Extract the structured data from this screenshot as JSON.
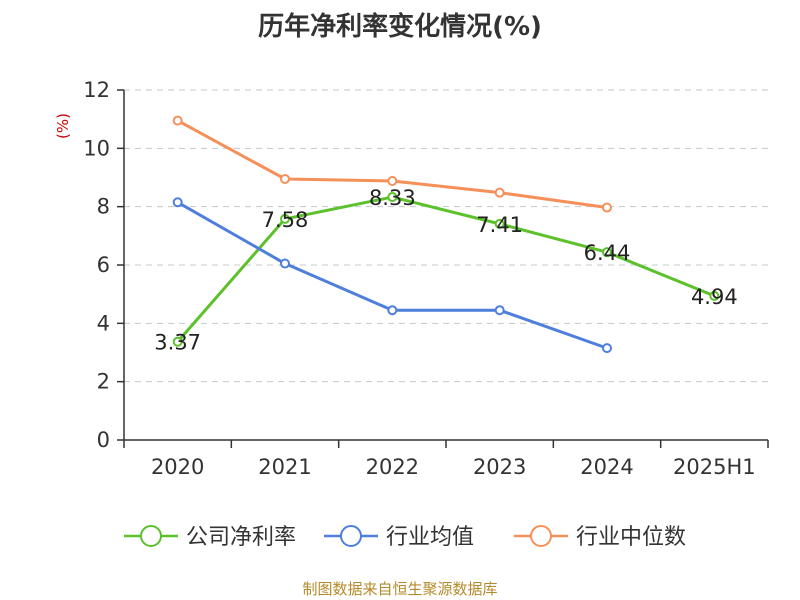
{
  "title": "历年净利率变化情况(%)",
  "source": "制图数据来自恒生聚源数据库",
  "colors": {
    "company": "#5cc12a",
    "industry_avg": "#4f7fdc",
    "industry_median": "#f5905a"
  },
  "chart_data": {
    "type": "line",
    "title": "历年净利率变化情况(%)",
    "ylabel": "(%)",
    "xlabel": "",
    "ylim": [
      0,
      12
    ],
    "yticks": [
      0,
      2,
      4,
      6,
      8,
      10,
      12
    ],
    "grid": true,
    "legend_position": "bottom",
    "categories": [
      "2020",
      "2021",
      "2022",
      "2023",
      "2024",
      "2025H1"
    ],
    "series": [
      {
        "name": "公司净利率",
        "color": "#5cc12a",
        "values": [
          3.37,
          7.58,
          8.33,
          7.41,
          6.44,
          4.94
        ],
        "data_labels": [
          "3.37",
          "7.58",
          "8.33",
          "7.41",
          "6.44",
          "4.94"
        ]
      },
      {
        "name": "行业均值",
        "color": "#4f7fdc",
        "values": [
          8.15,
          6.05,
          4.45,
          4.45,
          3.15,
          null
        ]
      },
      {
        "name": "行业中位数",
        "color": "#f5905a",
        "values": [
          10.95,
          8.95,
          8.88,
          8.48,
          7.97,
          null
        ]
      }
    ]
  }
}
